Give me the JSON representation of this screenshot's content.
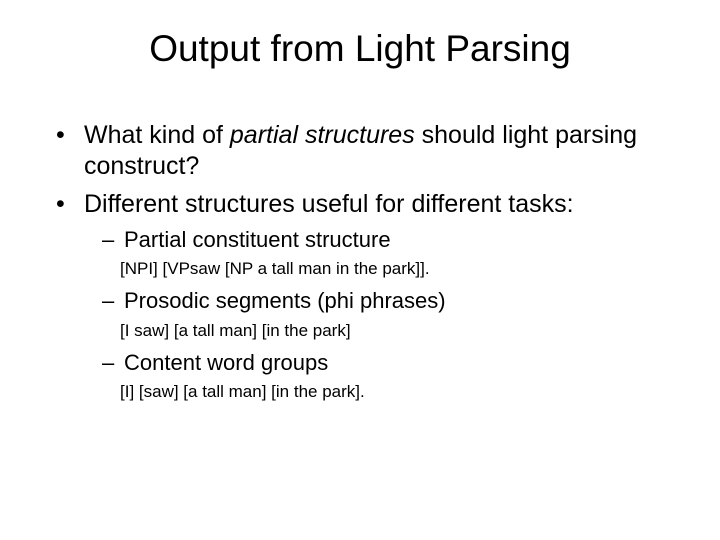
{
  "title": "Output from Light Parsing",
  "bullets": [
    {
      "pre": "What kind of ",
      "italic": "partial structures",
      "post": " should light parsing construct?"
    },
    {
      "text": "Different structures useful for different tasks:",
      "sub": [
        {
          "label": "Partial constituent structure",
          "example": "[NPI] [VPsaw [NP a tall man in the park]]."
        },
        {
          "label": "Prosodic segments (phi phrases)",
          "example": "[I saw] [a tall man] [in the park]"
        },
        {
          "label": "Content word groups",
          "example": "[I] [saw] [a tall man] [in the park]."
        }
      ]
    }
  ],
  "colors": {
    "background": "#ffffff",
    "text": "#000000"
  }
}
